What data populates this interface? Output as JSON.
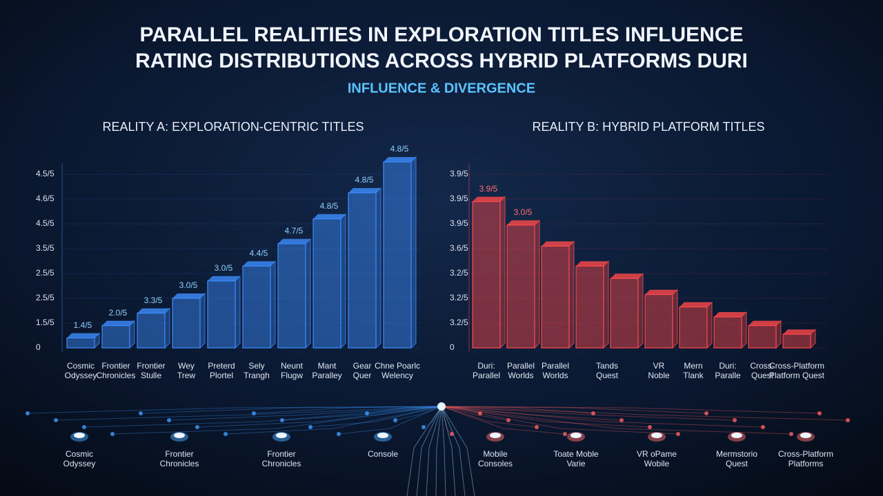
{
  "header": {
    "title_lines": [
      "PARALLEL REALITIES IN EXPLORATION TITLES INFLUENCE",
      "RATING DISTRIBUTIONS ACROSS HYBRID PLATFORMS DURI"
    ],
    "subtitle": "INFLUENCE & DIVERGENCE"
  },
  "chart_data": [
    {
      "type": "bar",
      "title": "REALITY A: EXPLORATION-CENTRIC TITLES",
      "color": "#3d8dff",
      "label_color": "#8fd0ff",
      "ylim": [
        0,
        8
      ],
      "yticks": [
        {
          "value": 0,
          "label": "0"
        },
        {
          "value": 1,
          "label": "1.5/5"
        },
        {
          "value": 2,
          "label": "2.5/5"
        },
        {
          "value": 3,
          "label": "2.5/5"
        },
        {
          "value": 4,
          "label": "3.5/5"
        },
        {
          "value": 5,
          "label": "4.5/5"
        },
        {
          "value": 6,
          "label": "4.6/5"
        },
        {
          "value": 7,
          "label": "4.5/5"
        }
      ],
      "categories": [
        [
          "Cosmic",
          "Odyssey"
        ],
        [
          "Frontier",
          "Chronicles"
        ],
        [
          "Frontier",
          "Stulle"
        ],
        [
          "Wey",
          "Trew"
        ],
        [
          "Preterd",
          "Plortel"
        ],
        [
          "Sely",
          "Trangh"
        ],
        [
          "Neunt",
          "Flugw"
        ],
        [
          "Mant",
          "Paralley"
        ],
        [
          "Gear",
          "Quer"
        ],
        [
          "Chne Poarlc",
          "Welency"
        ]
      ],
      "values": [
        0.4,
        0.9,
        1.4,
        2.0,
        2.7,
        3.3,
        4.2,
        5.2,
        6.25,
        7.5
      ],
      "annotations": [
        "1.4/5",
        "2.0/5",
        "3.3/5",
        "3.0/5",
        "3.0/5",
        "4.4/5",
        "4.7/5",
        "4.8/5",
        "4.8/5",
        "4.8/5"
      ]
    },
    {
      "type": "bar",
      "title": "REALITY B: HYBRID PLATFORM TITLES",
      "color": "#ff4a4a",
      "label_color": "#ff6e6e",
      "ylim": [
        0,
        8
      ],
      "yticks": [
        {
          "value": 0,
          "label": "0"
        },
        {
          "value": 1,
          "label": "3.2/5"
        },
        {
          "value": 2,
          "label": "3.2/5"
        },
        {
          "value": 3,
          "label": "3.2/5"
        },
        {
          "value": 4,
          "label": "3.6/5"
        },
        {
          "value": 5,
          "label": "3.9/5"
        },
        {
          "value": 6,
          "label": "3.9/5"
        },
        {
          "value": 7,
          "label": "3.9/5"
        }
      ],
      "categories": [
        [
          "Duri:",
          "Parallel"
        ],
        [
          "Parallel",
          "Worlds"
        ],
        [
          "Parallel",
          "Worlds"
        ],
        [
          "Tands",
          "Quest"
        ],
        null,
        [
          "VR",
          "Noble"
        ],
        [
          "Mern",
          "Tlank"
        ],
        [
          "Duri:",
          "Paralle"
        ],
        [
          "Cross-",
          "Quest"
        ],
        [
          "Cross-Platform",
          "Platform Quest"
        ]
      ],
      "values": [
        5.9,
        4.95,
        4.1,
        3.3,
        2.8,
        2.15,
        1.65,
        1.25,
        0.9,
        0.55
      ],
      "annotations": [
        "3.9/5",
        "3.0/5"
      ]
    }
  ],
  "network": {
    "nodes": [
      [
        "Cosmic",
        "Odyssey"
      ],
      [
        "Frontier",
        "Chronicles"
      ],
      [
        "Frontier",
        "Chronicles"
      ],
      [
        "Console"
      ],
      [
        "Mobile",
        "Consoles"
      ],
      [
        "Toate Moble",
        "Varie"
      ],
      [
        "VR oPame",
        "Wobile"
      ],
      [
        "Mermstorio",
        "Quest"
      ],
      [
        "Cross-Platform",
        "Platforms"
      ]
    ]
  }
}
